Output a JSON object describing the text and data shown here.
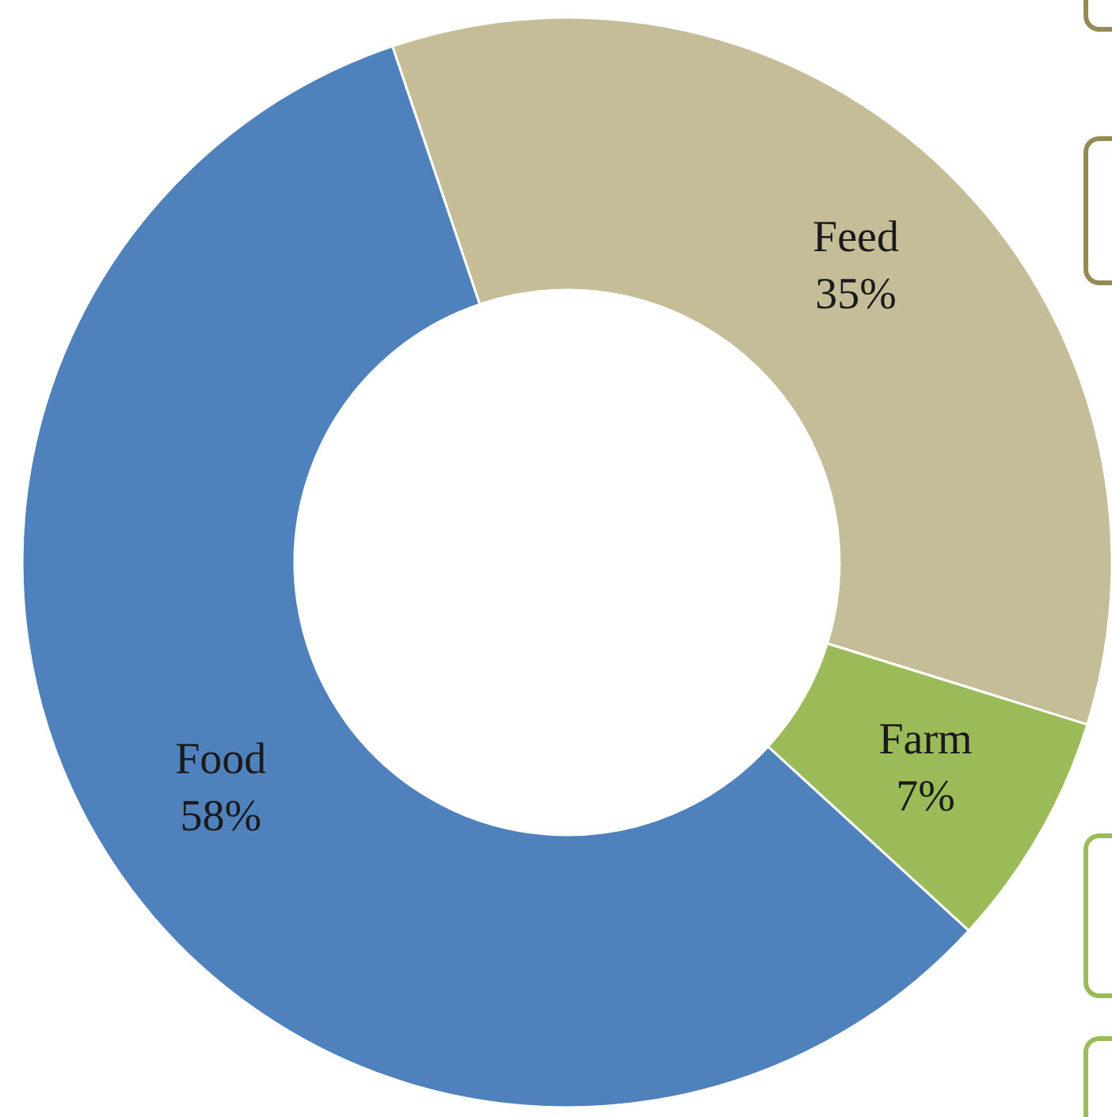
{
  "chart_data": {
    "type": "donut",
    "categories": [
      "Feed",
      "Farm",
      "Food"
    ],
    "values": [
      35,
      7,
      58
    ],
    "colors": [
      "#c4bd97",
      "#9bbb59",
      "#4f81bd"
    ],
    "value_labels": [
      "35%",
      "7%",
      "58%"
    ]
  }
}
